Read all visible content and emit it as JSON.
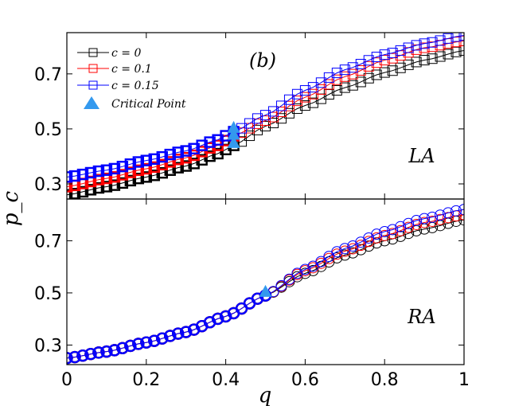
{
  "chart_data": [
    {
      "type": "line",
      "panel": "top",
      "panel_label": "LA",
      "annotation": "(b)",
      "ylabel": "p_c",
      "xlim": [
        0,
        1
      ],
      "ylim": [
        0.245,
        0.85
      ],
      "yticks": [
        "0.3",
        "0.5",
        "0.7"
      ],
      "ytick_values": [
        0.3,
        0.5,
        0.7
      ],
      "markers": "square",
      "legend": [
        "c = 0",
        "c = 0.1",
        "c = 0.15",
        "Critical Point"
      ],
      "series": [
        {
          "name": "c = 0",
          "color": "#000000",
          "x_thick_end": 0.42,
          "anchors": [
            [
              0,
              0.26
            ],
            [
              0.1,
              0.29
            ],
            [
              0.2,
              0.325
            ],
            [
              0.3,
              0.365
            ],
            [
              0.38,
              0.41
            ],
            [
              0.42,
              0.44
            ],
            [
              0.5,
              0.51
            ],
            [
              0.6,
              0.585
            ],
            [
              0.7,
              0.65
            ],
            [
              0.8,
              0.705
            ],
            [
              0.9,
              0.75
            ],
            [
              1.0,
              0.785
            ]
          ]
        },
        {
          "name": "c = 0.1",
          "color": "#ff0000",
          "x_thick_end": 0.42,
          "anchors": [
            [
              0,
              0.29
            ],
            [
              0.1,
              0.32
            ],
            [
              0.2,
              0.355
            ],
            [
              0.3,
              0.395
            ],
            [
              0.38,
              0.44
            ],
            [
              0.42,
              0.475
            ],
            [
              0.5,
              0.53
            ],
            [
              0.6,
              0.615
            ],
            [
              0.7,
              0.69
            ],
            [
              0.8,
              0.75
            ],
            [
              0.9,
              0.795
            ],
            [
              1.0,
              0.82
            ]
          ]
        },
        {
          "name": "c = 0.15",
          "color": "#0000ff",
          "x_thick_end": 0.42,
          "anchors": [
            [
              0,
              0.325
            ],
            [
              0.1,
              0.35
            ],
            [
              0.2,
              0.385
            ],
            [
              0.3,
              0.42
            ],
            [
              0.38,
              0.46
            ],
            [
              0.42,
              0.49
            ],
            [
              0.5,
              0.55
            ],
            [
              0.6,
              0.64
            ],
            [
              0.7,
              0.715
            ],
            [
              0.8,
              0.77
            ],
            [
              0.9,
              0.81
            ],
            [
              1.0,
              0.84
            ]
          ]
        }
      ],
      "critical_points": [
        [
          0.42,
          0.445
        ],
        [
          0.42,
          0.475
        ],
        [
          0.42,
          0.5
        ]
      ]
    },
    {
      "type": "line",
      "panel": "bottom",
      "panel_label": "RA",
      "xlabel": "q",
      "xlim": [
        0,
        1
      ],
      "ylim": [
        0.225,
        0.86
      ],
      "xticks": [
        "0",
        "0.2",
        "0.4",
        "0.6",
        "0.8",
        "1"
      ],
      "xtick_values": [
        0,
        0.2,
        0.4,
        0.6,
        0.8,
        1.0
      ],
      "yticks": [
        "0.3",
        "0.5",
        "0.7"
      ],
      "ytick_values": [
        0.3,
        0.5,
        0.7
      ],
      "markers": "circle",
      "series": [
        {
          "name": "c = 0",
          "color": "#000000",
          "x_thick_end": 0.5,
          "anchors": [
            [
              0,
              0.25
            ],
            [
              0.1,
              0.275
            ],
            [
              0.2,
              0.31
            ],
            [
              0.3,
              0.35
            ],
            [
              0.4,
              0.41
            ],
            [
              0.5,
              0.49
            ],
            [
              0.6,
              0.575
            ],
            [
              0.7,
              0.645
            ],
            [
              0.8,
              0.7
            ],
            [
              0.9,
              0.745
            ],
            [
              1.0,
              0.78
            ]
          ]
        },
        {
          "name": "c = 0.1",
          "color": "#ff0000",
          "x_thick_end": 0.5,
          "anchors": [
            [
              0,
              0.25
            ],
            [
              0.1,
              0.275
            ],
            [
              0.2,
              0.31
            ],
            [
              0.3,
              0.35
            ],
            [
              0.4,
              0.41
            ],
            [
              0.5,
              0.49
            ],
            [
              0.6,
              0.585
            ],
            [
              0.7,
              0.66
            ],
            [
              0.8,
              0.72
            ],
            [
              0.9,
              0.77
            ],
            [
              1.0,
              0.8
            ]
          ]
        },
        {
          "name": "c = 0.15",
          "color": "#0000ff",
          "x_thick_end": 0.5,
          "anchors": [
            [
              0,
              0.25
            ],
            [
              0.1,
              0.275
            ],
            [
              0.2,
              0.31
            ],
            [
              0.3,
              0.35
            ],
            [
              0.4,
              0.41
            ],
            [
              0.5,
              0.49
            ],
            [
              0.6,
              0.59
            ],
            [
              0.7,
              0.67
            ],
            [
              0.8,
              0.735
            ],
            [
              0.9,
              0.785
            ],
            [
              1.0,
              0.82
            ]
          ]
        }
      ],
      "critical_points": [
        [
          0.5,
          0.5
        ]
      ]
    }
  ],
  "critical_color": "#3399ee"
}
